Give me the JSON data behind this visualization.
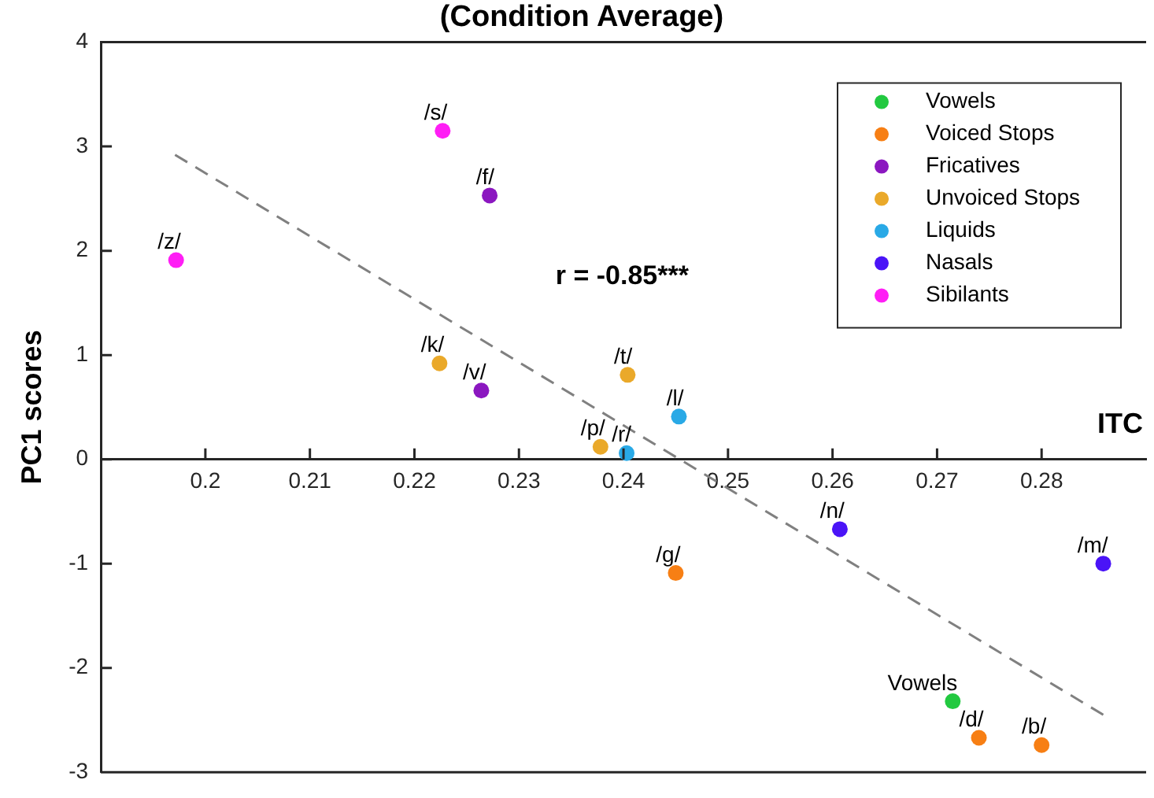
{
  "chart_data": {
    "type": "scatter",
    "title": "(Condition Average)",
    "xlabel": "ITC",
    "ylabel": "PC1 scores",
    "xlim": [
      0.19,
      0.29
    ],
    "xticks": [
      0.2,
      0.21,
      0.22,
      0.23,
      0.24,
      0.25,
      0.26,
      0.27,
      0.28
    ],
    "ylim": [
      -3,
      4
    ],
    "yticks": [
      -3,
      -2,
      -1,
      0,
      1,
      2,
      3,
      4
    ],
    "grid": false,
    "legend": "top right",
    "marker": "circle",
    "series": [
      {
        "name": "Vowels",
        "color": "#22c940",
        "x": [
          0.2715
        ],
        "values": [
          -2.32
        ]
      },
      {
        "name": "Voiced Stops",
        "color": "#f77f14",
        "x": [
          0.245,
          0.274,
          0.28
        ],
        "values": [
          -1.09,
          -2.67,
          -2.74
        ]
      },
      {
        "name": "Fricatives",
        "color": "#8b17c0",
        "x": [
          0.2272,
          0.2264
        ],
        "values": [
          2.53,
          0.66
        ]
      },
      {
        "name": "Unvoiced Stops",
        "color": "#eaa92a",
        "x": [
          0.2224,
          0.2404,
          0.2378
        ],
        "values": [
          0.92,
          0.81,
          0.12
        ]
      },
      {
        "name": "Liquids",
        "color": "#29a9e6",
        "x": [
          0.2453,
          0.2403
        ],
        "values": [
          0.41,
          0.06
        ]
      },
      {
        "name": "Nasals",
        "color": "#4a14f7",
        "x": [
          0.2607,
          0.2859
        ],
        "values": [
          -0.67,
          -1.0
        ]
      },
      {
        "name": "Sibilants",
        "color": "#ff1ef5",
        "x": [
          0.2227,
          0.1972
        ],
        "values": [
          3.15,
          1.91
        ]
      },
      {
        "type": "line",
        "color": "#808080",
        "line_style": "dashed",
        "marker": "none",
        "x": [
          0.1971,
          0.2859
        ],
        "values": [
          2.92,
          -2.45
        ]
      }
    ],
    "annotations": [
      "r = -0.85***",
      {
        "text": "/s/",
        "x": 0.2227,
        "y": 3.15
      },
      {
        "text": "/f/",
        "x": 0.2272,
        "y": 2.53
      },
      {
        "text": "/z/",
        "x": 0.1972,
        "y": 1.91
      },
      {
        "text": "/k/",
        "x": 0.2224,
        "y": 0.92
      },
      {
        "text": "/v/",
        "x": 0.2264,
        "y": 0.66
      },
      {
        "text": "/t/",
        "x": 0.2404,
        "y": 0.81
      },
      {
        "text": "/l/",
        "x": 0.2453,
        "y": 0.41
      },
      {
        "text": "/p/",
        "x": 0.2378,
        "y": 0.12
      },
      {
        "text": "/r/",
        "x": 0.2403,
        "y": 0.06
      },
      {
        "text": "/n/",
        "x": 0.2607,
        "y": -0.67
      },
      {
        "text": "/m/",
        "x": 0.2859,
        "y": -1.0
      },
      {
        "text": "/g/",
        "x": 0.245,
        "y": -1.09
      },
      {
        "text": "Vowels",
        "x": 0.2715,
        "y": -2.32
      },
      {
        "text": "/d/",
        "x": 0.274,
        "y": -2.67
      },
      {
        "text": "/b/",
        "x": 0.28,
        "y": -2.74
      }
    ]
  }
}
